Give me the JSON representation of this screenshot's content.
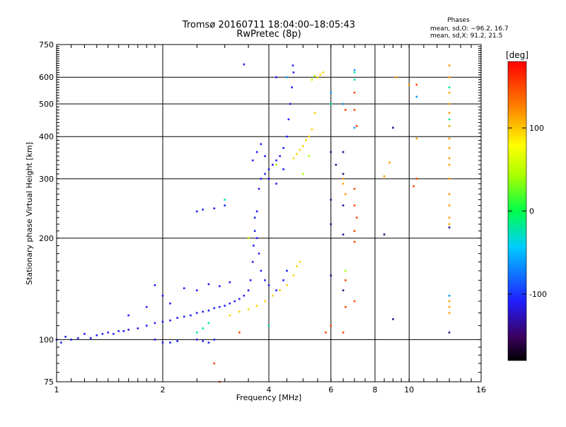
{
  "chart_data": {
    "type": "scatter",
    "title": "Tromsø 20160711 18:04:00–18:05:43",
    "subtitle": "RwPretec (8p)",
    "phase_stats": {
      "heading": "Phases",
      "line_o": "mean, sd,O: −96.2, 16.7",
      "line_x": "mean, sd,X:  91.2, 21.5"
    },
    "xlabel": "Frequency [MHz]",
    "ylabel": "Stationary phase Virtual Height [km]",
    "x_scale": "log",
    "y_scale": "log",
    "xlim": [
      1,
      16
    ],
    "ylim": [
      75,
      750
    ],
    "x_ticks": [
      1,
      2,
      4,
      6,
      8,
      10,
      16
    ],
    "x_tick_labels": [
      "1",
      "2",
      "4",
      "6",
      "8",
      "10",
      "16"
    ],
    "y_ticks": [
      75,
      100,
      200,
      300,
      400,
      500,
      600,
      750
    ],
    "y_tick_labels": [
      "75",
      "100",
      "200",
      "300",
      "400",
      "500",
      "600",
      "750"
    ],
    "grid": true,
    "colorbar": {
      "label": "[deg]",
      "range": [
        -180,
        180
      ],
      "ticks": [
        100,
        0,
        -100
      ],
      "tick_labels": [
        "100",
        "0",
        "-100"
      ]
    },
    "series": [
      {
        "phase_deg": -110,
        "points": [
          [
            1.0,
            100
          ],
          [
            1.03,
            98
          ],
          [
            1.06,
            102
          ],
          [
            1.1,
            100
          ],
          [
            1.15,
            101
          ],
          [
            1.2,
            104
          ],
          [
            1.25,
            101
          ],
          [
            1.3,
            103
          ],
          [
            1.35,
            104
          ],
          [
            1.4,
            105
          ],
          [
            1.45,
            104
          ],
          [
            1.5,
            106
          ],
          [
            1.55,
            106
          ],
          [
            1.6,
            107
          ],
          [
            1.7,
            108
          ],
          [
            1.8,
            110
          ],
          [
            1.9,
            112
          ],
          [
            2.0,
            113
          ],
          [
            2.1,
            114
          ],
          [
            2.2,
            116
          ],
          [
            2.3,
            117
          ],
          [
            2.4,
            118
          ],
          [
            2.5,
            120
          ],
          [
            2.6,
            121
          ],
          [
            2.7,
            122
          ],
          [
            2.8,
            124
          ],
          [
            2.9,
            125
          ],
          [
            3.0,
            126
          ],
          [
            3.1,
            128
          ],
          [
            3.2,
            130
          ],
          [
            3.3,
            132
          ],
          [
            3.4,
            135
          ],
          [
            3.5,
            140
          ],
          [
            3.55,
            150
          ],
          [
            3.6,
            170
          ],
          [
            3.62,
            190
          ],
          [
            3.65,
            210
          ],
          [
            3.7,
            240
          ],
          [
            3.75,
            280
          ],
          [
            3.8,
            300
          ],
          [
            3.9,
            310
          ],
          [
            4.0,
            320
          ],
          [
            4.1,
            330
          ],
          [
            4.2,
            340
          ],
          [
            4.3,
            350
          ],
          [
            4.4,
            370
          ],
          [
            4.5,
            400
          ],
          [
            4.55,
            450
          ],
          [
            4.6,
            500
          ],
          [
            4.65,
            560
          ],
          [
            4.7,
            620
          ],
          [
            4.68,
            650
          ],
          [
            3.6,
            340
          ],
          [
            3.7,
            360
          ],
          [
            3.8,
            380
          ],
          [
            3.9,
            350
          ],
          [
            4.0,
            300
          ],
          [
            4.2,
            290
          ],
          [
            4.4,
            320
          ],
          [
            3.65,
            230
          ],
          [
            3.7,
            200
          ],
          [
            3.75,
            180
          ],
          [
            3.8,
            160
          ],
          [
            3.9,
            150
          ],
          [
            4.0,
            145
          ],
          [
            4.2,
            140
          ],
          [
            4.4,
            150
          ],
          [
            4.5,
            160
          ],
          [
            2.0,
            135
          ],
          [
            2.1,
            128
          ],
          [
            2.3,
            142
          ],
          [
            2.5,
            140
          ],
          [
            2.7,
            146
          ],
          [
            2.9,
            144
          ],
          [
            3.1,
            148
          ],
          [
            1.8,
            125
          ],
          [
            1.6,
            118
          ],
          [
            1.9,
            100
          ],
          [
            2.0,
            98
          ],
          [
            2.1,
            98
          ],
          [
            2.2,
            99
          ],
          [
            2.5,
            100
          ],
          [
            2.6,
            99
          ],
          [
            2.7,
            98
          ],
          [
            2.8,
            100
          ],
          [
            2.5,
            240
          ],
          [
            2.6,
            243
          ],
          [
            2.8,
            245
          ],
          [
            3.0,
            250
          ],
          [
            3.4,
            655
          ],
          [
            4.2,
            600
          ],
          [
            1.9,
            145
          ]
        ]
      },
      {
        "phase_deg": 95,
        "points": [
          [
            3.1,
            118
          ],
          [
            3.3,
            121
          ],
          [
            3.5,
            123
          ],
          [
            3.7,
            126
          ],
          [
            3.9,
            130
          ],
          [
            4.1,
            135
          ],
          [
            4.3,
            140
          ],
          [
            4.5,
            145
          ],
          [
            4.7,
            155
          ],
          [
            4.8,
            165
          ],
          [
            4.9,
            170
          ],
          [
            4.7,
            345
          ],
          [
            4.8,
            355
          ],
          [
            4.9,
            365
          ],
          [
            5.0,
            375
          ],
          [
            5.1,
            390
          ],
          [
            5.2,
            400
          ],
          [
            5.3,
            420
          ],
          [
            5.4,
            470
          ],
          [
            5.5,
            600
          ],
          [
            5.6,
            610
          ],
          [
            5.7,
            620
          ]
        ]
      },
      {
        "phase_deg": 45,
        "points": [
          [
            5.3,
            590
          ],
          [
            5.4,
            605
          ],
          [
            3.5,
            200
          ],
          [
            6.6,
            160
          ],
          [
            4.2,
            330
          ],
          [
            5.0,
            310
          ],
          [
            5.2,
            350
          ]
        ]
      },
      {
        "phase_deg": -20,
        "points": [
          [
            2.5,
            105
          ],
          [
            2.6,
            108
          ],
          [
            2.7,
            112
          ],
          [
            3.0,
            260
          ],
          [
            7.0,
            620
          ],
          [
            7.0,
            590
          ],
          [
            6.0,
            500
          ],
          [
            13.0,
            560
          ],
          [
            13.0,
            450
          ],
          [
            4.0,
            110
          ]
        ]
      },
      {
        "phase_deg": 150,
        "points": [
          [
            6.5,
            500
          ],
          [
            6.6,
            480
          ],
          [
            7.0,
            480
          ],
          [
            7.1,
            430
          ],
          [
            7.0,
            280
          ],
          [
            7.0,
            250
          ],
          [
            7.1,
            230
          ],
          [
            7.0,
            210
          ],
          [
            7.0,
            195
          ],
          [
            7.0,
            130
          ],
          [
            6.6,
            125
          ],
          [
            6.6,
            150
          ],
          [
            6.0,
            110
          ],
          [
            5.8,
            105
          ],
          [
            10.5,
            570
          ],
          [
            10.5,
            300
          ],
          [
            10.3,
            285
          ],
          [
            2.8,
            85
          ],
          [
            2.9,
            75
          ],
          [
            3.3,
            105
          ],
          [
            6.5,
            105
          ],
          [
            7.0,
            540
          ]
        ]
      },
      {
        "phase_deg": -140,
        "points": [
          [
            6.0,
            360
          ],
          [
            6.2,
            330
          ],
          [
            6.5,
            310
          ],
          [
            6.5,
            250
          ],
          [
            6.0,
            220
          ],
          [
            6.5,
            205
          ],
          [
            9.0,
            425
          ],
          [
            8.5,
            205
          ],
          [
            9.0,
            115
          ],
          [
            13.0,
            105
          ],
          [
            13.0,
            215
          ],
          [
            6.0,
            155
          ],
          [
            6.5,
            140
          ],
          [
            6.0,
            260
          ],
          [
            6.5,
            360
          ]
        ]
      },
      {
        "phase_deg": 115,
        "points": [
          [
            6.5,
            300
          ],
          [
            6.5,
            290
          ],
          [
            6.6,
            270
          ],
          [
            8.5,
            305
          ],
          [
            8.8,
            335
          ],
          [
            9.2,
            600
          ],
          [
            10.0,
            570
          ],
          [
            10.5,
            395
          ],
          [
            13.0,
            650
          ],
          [
            13.0,
            600
          ],
          [
            13.0,
            540
          ],
          [
            13.0,
            500
          ],
          [
            13.0,
            470
          ],
          [
            13.0,
            430
          ],
          [
            13.0,
            395
          ],
          [
            13.0,
            370
          ],
          [
            13.0,
            345
          ],
          [
            13.0,
            330
          ],
          [
            13.0,
            300
          ],
          [
            13.0,
            270
          ],
          [
            13.0,
            250
          ],
          [
            13.0,
            230
          ],
          [
            13.0,
            220
          ],
          [
            13.0,
            130
          ],
          [
            13.0,
            125
          ],
          [
            13.0,
            120
          ]
        ]
      },
      {
        "phase_deg": -60,
        "points": [
          [
            7.0,
            630
          ],
          [
            6.0,
            540
          ],
          [
            7.0,
            425
          ],
          [
            10.5,
            525
          ],
          [
            13.0,
            135
          ],
          [
            4.5,
            600
          ],
          [
            6.5,
            500
          ]
        ]
      }
    ]
  }
}
